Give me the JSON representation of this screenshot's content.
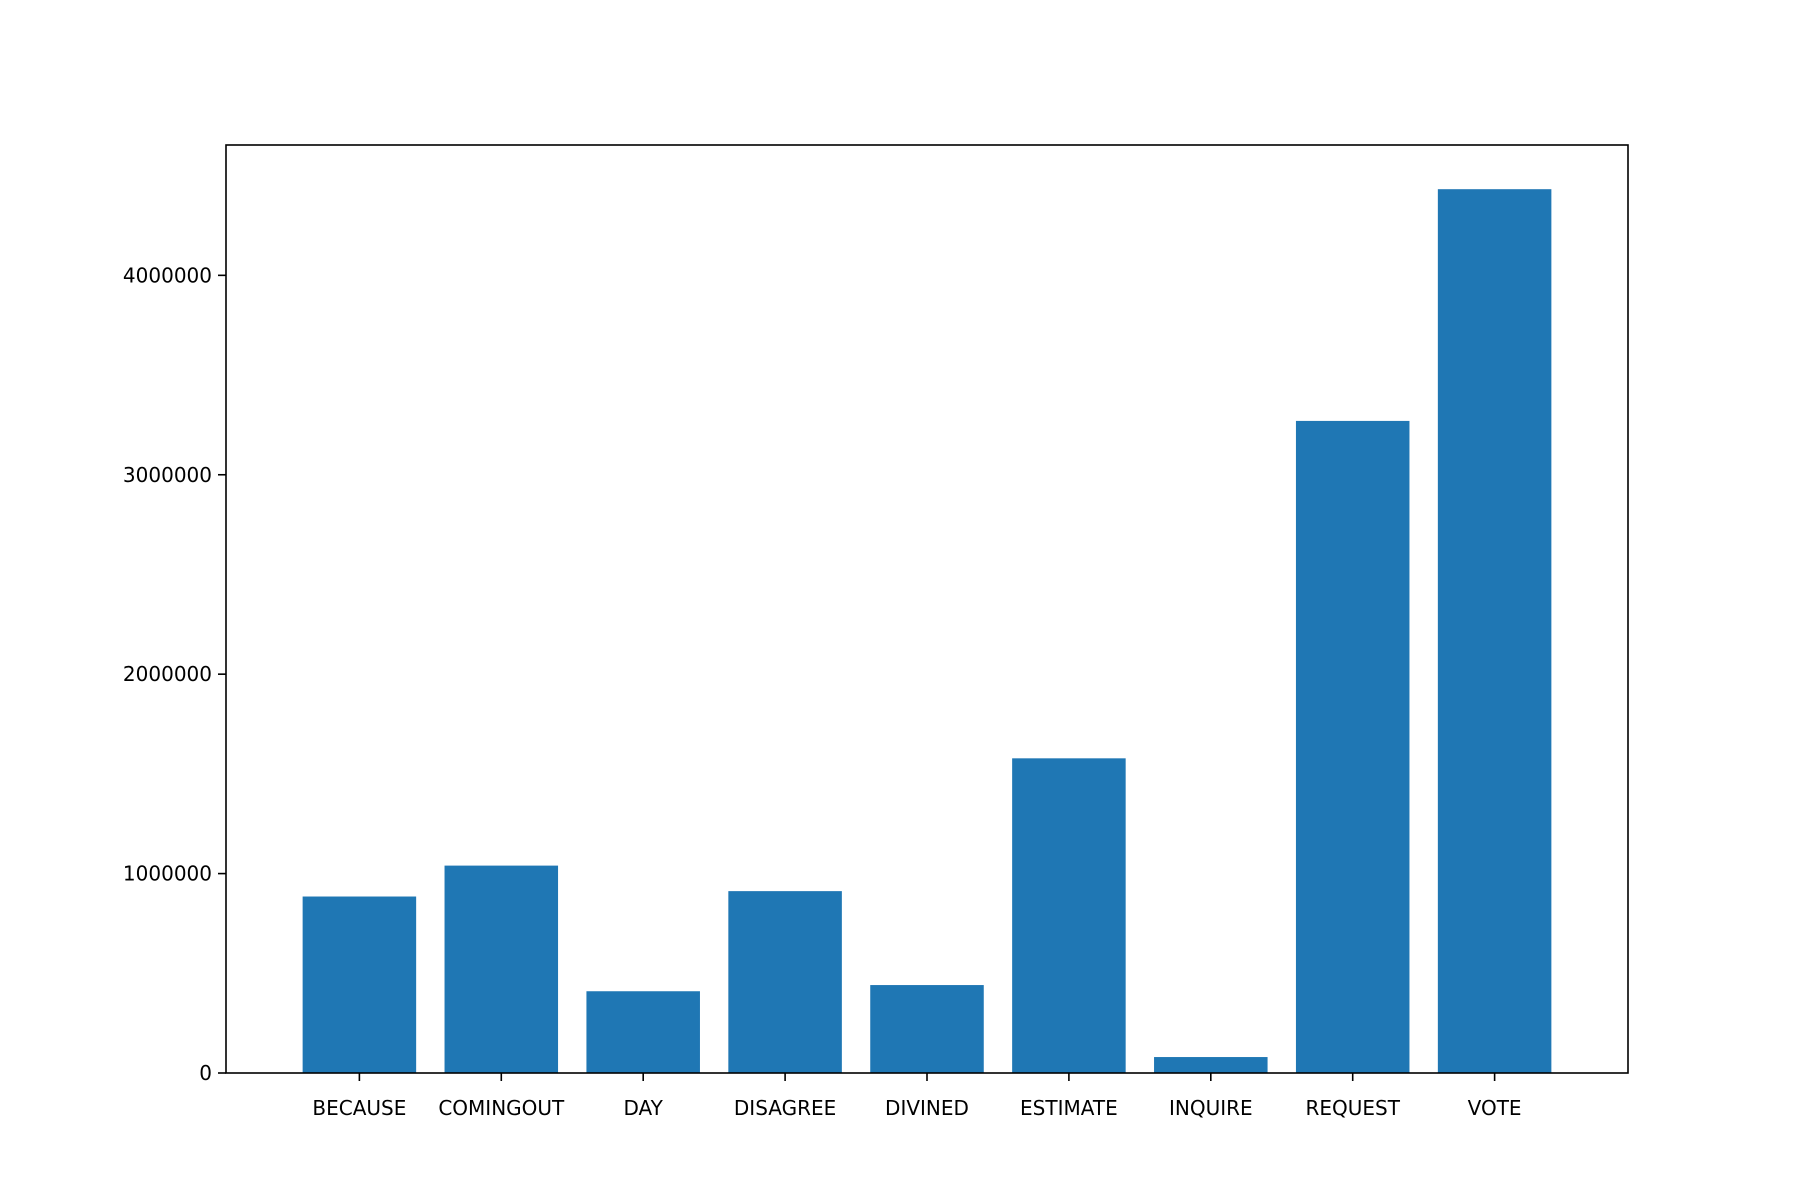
{
  "chart_data": {
    "type": "bar",
    "title": "",
    "xlabel": "",
    "ylabel": "",
    "categories": [
      "BECAUSE",
      "COMINGOUT",
      "DAY",
      "DISAGREE",
      "DIVINED",
      "ESTIMATE",
      "INQUIRE",
      "REQUEST",
      "VOTE"
    ],
    "values": [
      885000,
      1040000,
      410000,
      912000,
      441000,
      1578000,
      80000,
      3270000,
      4432000
    ],
    "ylim": [
      0,
      4653600
    ],
    "yticks": [
      0,
      1000000,
      2000000,
      3000000,
      4000000
    ],
    "ytick_labels": [
      "0",
      "1000000",
      "2000000",
      "3000000",
      "4000000"
    ],
    "grid": false,
    "bar_color": "#1f77b4"
  }
}
